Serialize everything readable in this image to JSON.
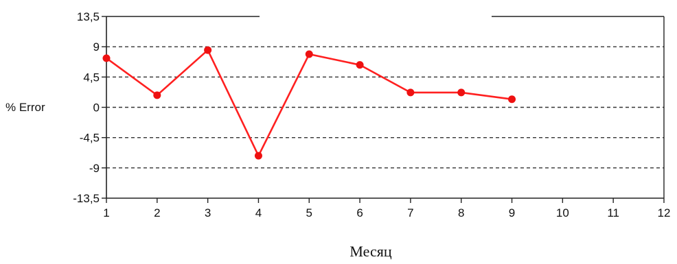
{
  "chart_data": {
    "type": "line",
    "xlabel": "Месяц",
    "ylabel": "% Error",
    "x": [
      1,
      2,
      3,
      4,
      5,
      6,
      7,
      8,
      9
    ],
    "series": [
      {
        "values": [
          7.3,
          1.8,
          8.5,
          -7.2,
          7.9,
          6.3,
          2.2,
          2.2,
          1.2
        ]
      }
    ],
    "xlim": [
      1,
      12
    ],
    "ylim": [
      -13.5,
      13.5
    ],
    "xticks": [
      1,
      2,
      3,
      4,
      5,
      6,
      7,
      8,
      9,
      10,
      11,
      12
    ],
    "yticks": [
      -13.5,
      -9,
      -4.5,
      0,
      4.5,
      9,
      13.5
    ],
    "ytick_labels": [
      "-13,5",
      "-9",
      "-4,5",
      "0",
      "4,5",
      "9",
      "13,5"
    ],
    "grid": "horizontal-dashed",
    "legend": "none",
    "line_color": "#ff2020",
    "marker_color": "#ee1111",
    "axis_color": "#222222",
    "grid_color": "#333333"
  }
}
